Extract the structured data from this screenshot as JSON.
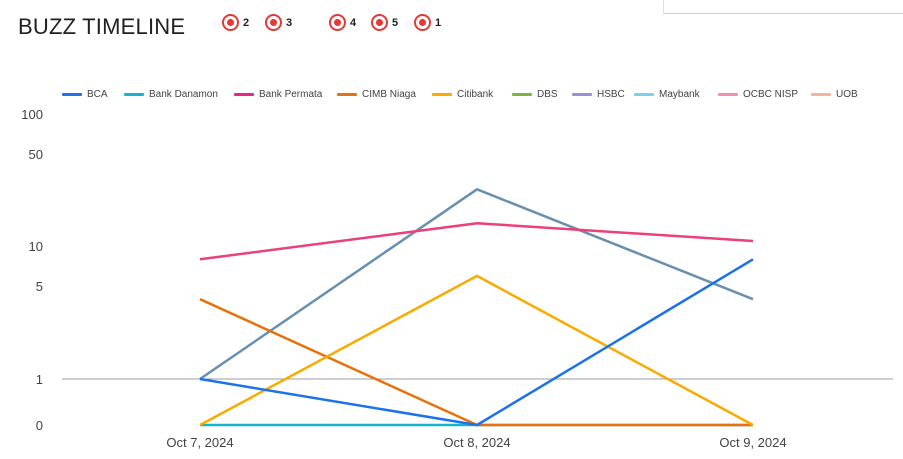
{
  "title": "BUZZ TIMELINE",
  "badges": [
    {
      "label": "2",
      "color": "#e53935"
    },
    {
      "label": "3",
      "color": "#e53935"
    },
    {
      "label": "4",
      "color": "#e53935"
    },
    {
      "label": "5",
      "color": "#e53935"
    },
    {
      "label": "1",
      "color": "#e53935"
    }
  ],
  "chart_data": {
    "type": "line",
    "title": "",
    "xlabel": "",
    "ylabel": "",
    "y_scale": "log",
    "y_ticks": [
      "100",
      "50",
      "10",
      "5",
      "1",
      "0"
    ],
    "grid": "horizontal line at 1",
    "legend_position": "top",
    "categories": [
      "Oct 7, 2024",
      "Oct 8, 2024",
      "Oct 9, 2024"
    ],
    "legend": [
      {
        "name": "BCA",
        "color": "#1a73e8"
      },
      {
        "name": "Bank Danamon",
        "color": "#12b5cb"
      },
      {
        "name": "Bank Permata",
        "color": "#e52592"
      },
      {
        "name": "CIMB Niaga",
        "color": "#e8710a"
      },
      {
        "name": "Citibank",
        "color": "#f9ab00"
      },
      {
        "name": "DBS",
        "color": "#7cb342"
      },
      {
        "name": "HSBC",
        "color": "#9e8fd0"
      },
      {
        "name": "Maybank",
        "color": "#7bd0f0"
      },
      {
        "name": "OCBC NISP",
        "color": "#f48fb1"
      },
      {
        "name": "UOB",
        "color": "#f4b39a"
      }
    ],
    "series": [
      {
        "name": "Bank Danamon",
        "color": "#12b5cb",
        "values": [
          0,
          0,
          0
        ]
      },
      {
        "color": "#6890b0",
        "values": [
          1,
          27,
          4
        ]
      },
      {
        "name": "Bank Permata",
        "color": "#ec407a",
        "values": [
          8,
          15,
          11
        ]
      },
      {
        "name": "CIMB Niaga",
        "color": "#e8710a",
        "values": [
          4,
          0,
          0
        ]
      },
      {
        "name": "Citibank",
        "color": "#f9ab00",
        "values": [
          0,
          6,
          0
        ]
      },
      {
        "name": "BCA",
        "color": "#1a73e8",
        "values": [
          1,
          0,
          8
        ]
      }
    ]
  }
}
